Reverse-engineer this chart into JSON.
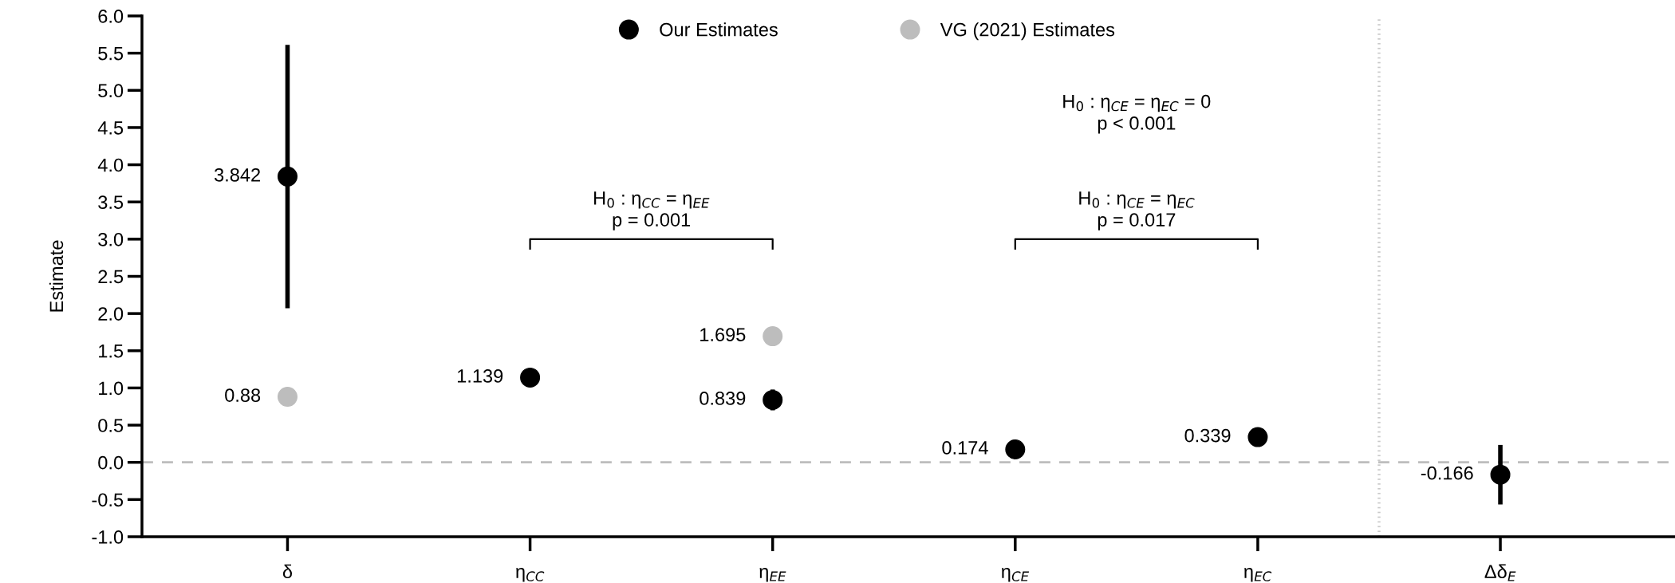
{
  "chart_data": {
    "type": "scatter",
    "categories": [
      "δ",
      "η$_{CC}$",
      "η$_{EE}$",
      "η$_{CE}$",
      "η$_{EC}$",
      "Δδ$_{E}$"
    ],
    "ylabel": "Estimate",
    "series": [
      {
        "name": "Our Estimates",
        "color": "#000000",
        "values": [
          3.842,
          1.139,
          0.839,
          0.174,
          0.339,
          -0.166
        ],
        "errors": [
          1.77,
          null,
          0.14,
          null,
          null,
          0.4
        ]
      },
      {
        "name": "VG (2021) Estimates",
        "color": "#bdbdbd",
        "values": [
          0.88,
          null,
          1.695,
          null,
          null,
          null
        ]
      }
    ],
    "ylim": [
      -1.0,
      6.0
    ],
    "yticks": [
      {
        "value": -1.0,
        "label": "-1.0"
      },
      {
        "value": -0.5,
        "label": "-0.5"
      },
      {
        "value": 0.0,
        "label": "0.0"
      },
      {
        "value": 0.5,
        "label": "0.5"
      },
      {
        "value": 1.0,
        "label": "1.0"
      },
      {
        "value": 1.5,
        "label": "1.5"
      },
      {
        "value": 2.0,
        "label": "2.0"
      },
      {
        "value": 2.5,
        "label": "2.5"
      },
      {
        "value": 3.0,
        "label": "3.0"
      },
      {
        "value": 3.5,
        "label": "3.5"
      },
      {
        "value": 4.0,
        "label": "4.0"
      },
      {
        "value": 4.5,
        "label": "4.5"
      },
      {
        "value": 5.0,
        "label": "5.0"
      },
      {
        "value": 5.5,
        "label": "5.5"
      },
      {
        "value": 6.0,
        "label": "6.0"
      }
    ],
    "ref_lines": [
      {
        "axis": "y",
        "value": 0,
        "color": "#bdbdbd",
        "line_style": "dashed"
      }
    ],
    "annotations": [
      "H$_{0}$ : η$_{CC}$ = η$_{EE}$\np = 0.001",
      "H$_{0}$ : η$_{CE}$ = η$_{EC}$\np = 0.017",
      "H$_{0}$ : η$_{CE}$ = η$_{EC}$ = 0\np < 0.001"
    ],
    "data_labels": true,
    "marker": "circle",
    "legend": "top",
    "grid": false
  }
}
